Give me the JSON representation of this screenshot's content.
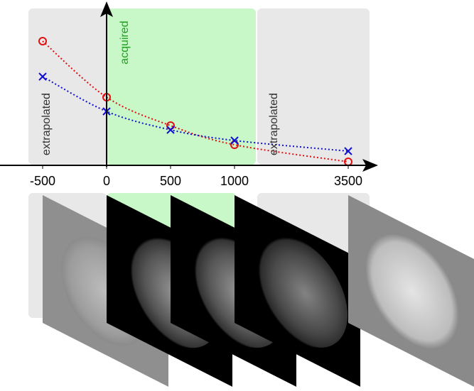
{
  "chart_data": {
    "type": "line",
    "x": [
      -500,
      0,
      500,
      1000,
      3500
    ],
    "xticks": [
      -500,
      0,
      500,
      1000,
      3500
    ],
    "ylim": [
      0,
      233
    ],
    "series": [
      {
        "color": "#e01010",
        "marker": "o",
        "values": [
          175,
          96,
          56,
          29,
          5
        ]
      },
      {
        "color": "#1010d0",
        "marker": "x",
        "values": [
          125,
          76,
          50,
          35,
          20
        ]
      }
    ],
    "annotations": [
      "extrapolated",
      "acquired",
      "extrapolated"
    ]
  }
}
